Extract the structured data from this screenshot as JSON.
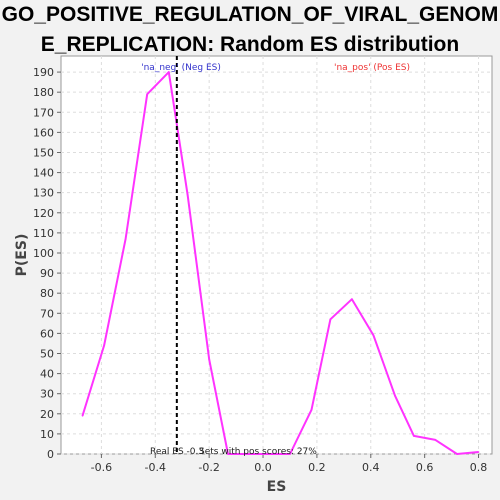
{
  "title_line1": "GO_POSITIVE_REGULATION_OF_VIRAL_GENOM",
  "title_line2": "E_REPLICATION: Random ES distribution",
  "chart_data": {
    "type": "line",
    "xlabel": "ES",
    "ylabel": "P(ES)",
    "xlim": [
      -0.75,
      0.85
    ],
    "ylim": [
      0,
      198
    ],
    "x_ticks": [
      -0.6,
      -0.4,
      -0.2,
      0.0,
      0.2,
      0.4,
      0.6,
      0.8
    ],
    "x_tick_labels": [
      "-0.6",
      "-0.4",
      "-0.2",
      "0.0",
      "0.2",
      "0.4",
      "0.6",
      "0.8"
    ],
    "y_ticks": [
      0,
      10,
      20,
      30,
      40,
      50,
      60,
      70,
      80,
      90,
      100,
      110,
      120,
      130,
      140,
      150,
      160,
      170,
      180,
      190
    ],
    "grid": true,
    "series": [
      {
        "color": "#ff33ff",
        "x": [
          -0.67,
          -0.59,
          -0.51,
          -0.43,
          -0.35,
          -0.28,
          -0.2,
          -0.13,
          -0.05,
          0.02,
          0.1,
          0.18,
          0.25,
          0.33,
          0.41,
          0.49,
          0.56,
          0.64,
          0.72,
          0.8
        ],
        "y": [
          19,
          54,
          107,
          179,
          190,
          129,
          47,
          0,
          0,
          0,
          0,
          22,
          67,
          77,
          59,
          29,
          9,
          7,
          0,
          1
        ]
      }
    ],
    "real_es": -0.32,
    "annotations": {
      "neg_label": "'na_neg' (Neg ES)",
      "neg_color": "#3333cc",
      "pos_label": "'na_pos' (Pos ES)",
      "pos_color": "#ee3333",
      "real_es_label": "Real ES -0.3",
      "pos_scores_label": "Sets with pos scores: 27%"
    }
  }
}
